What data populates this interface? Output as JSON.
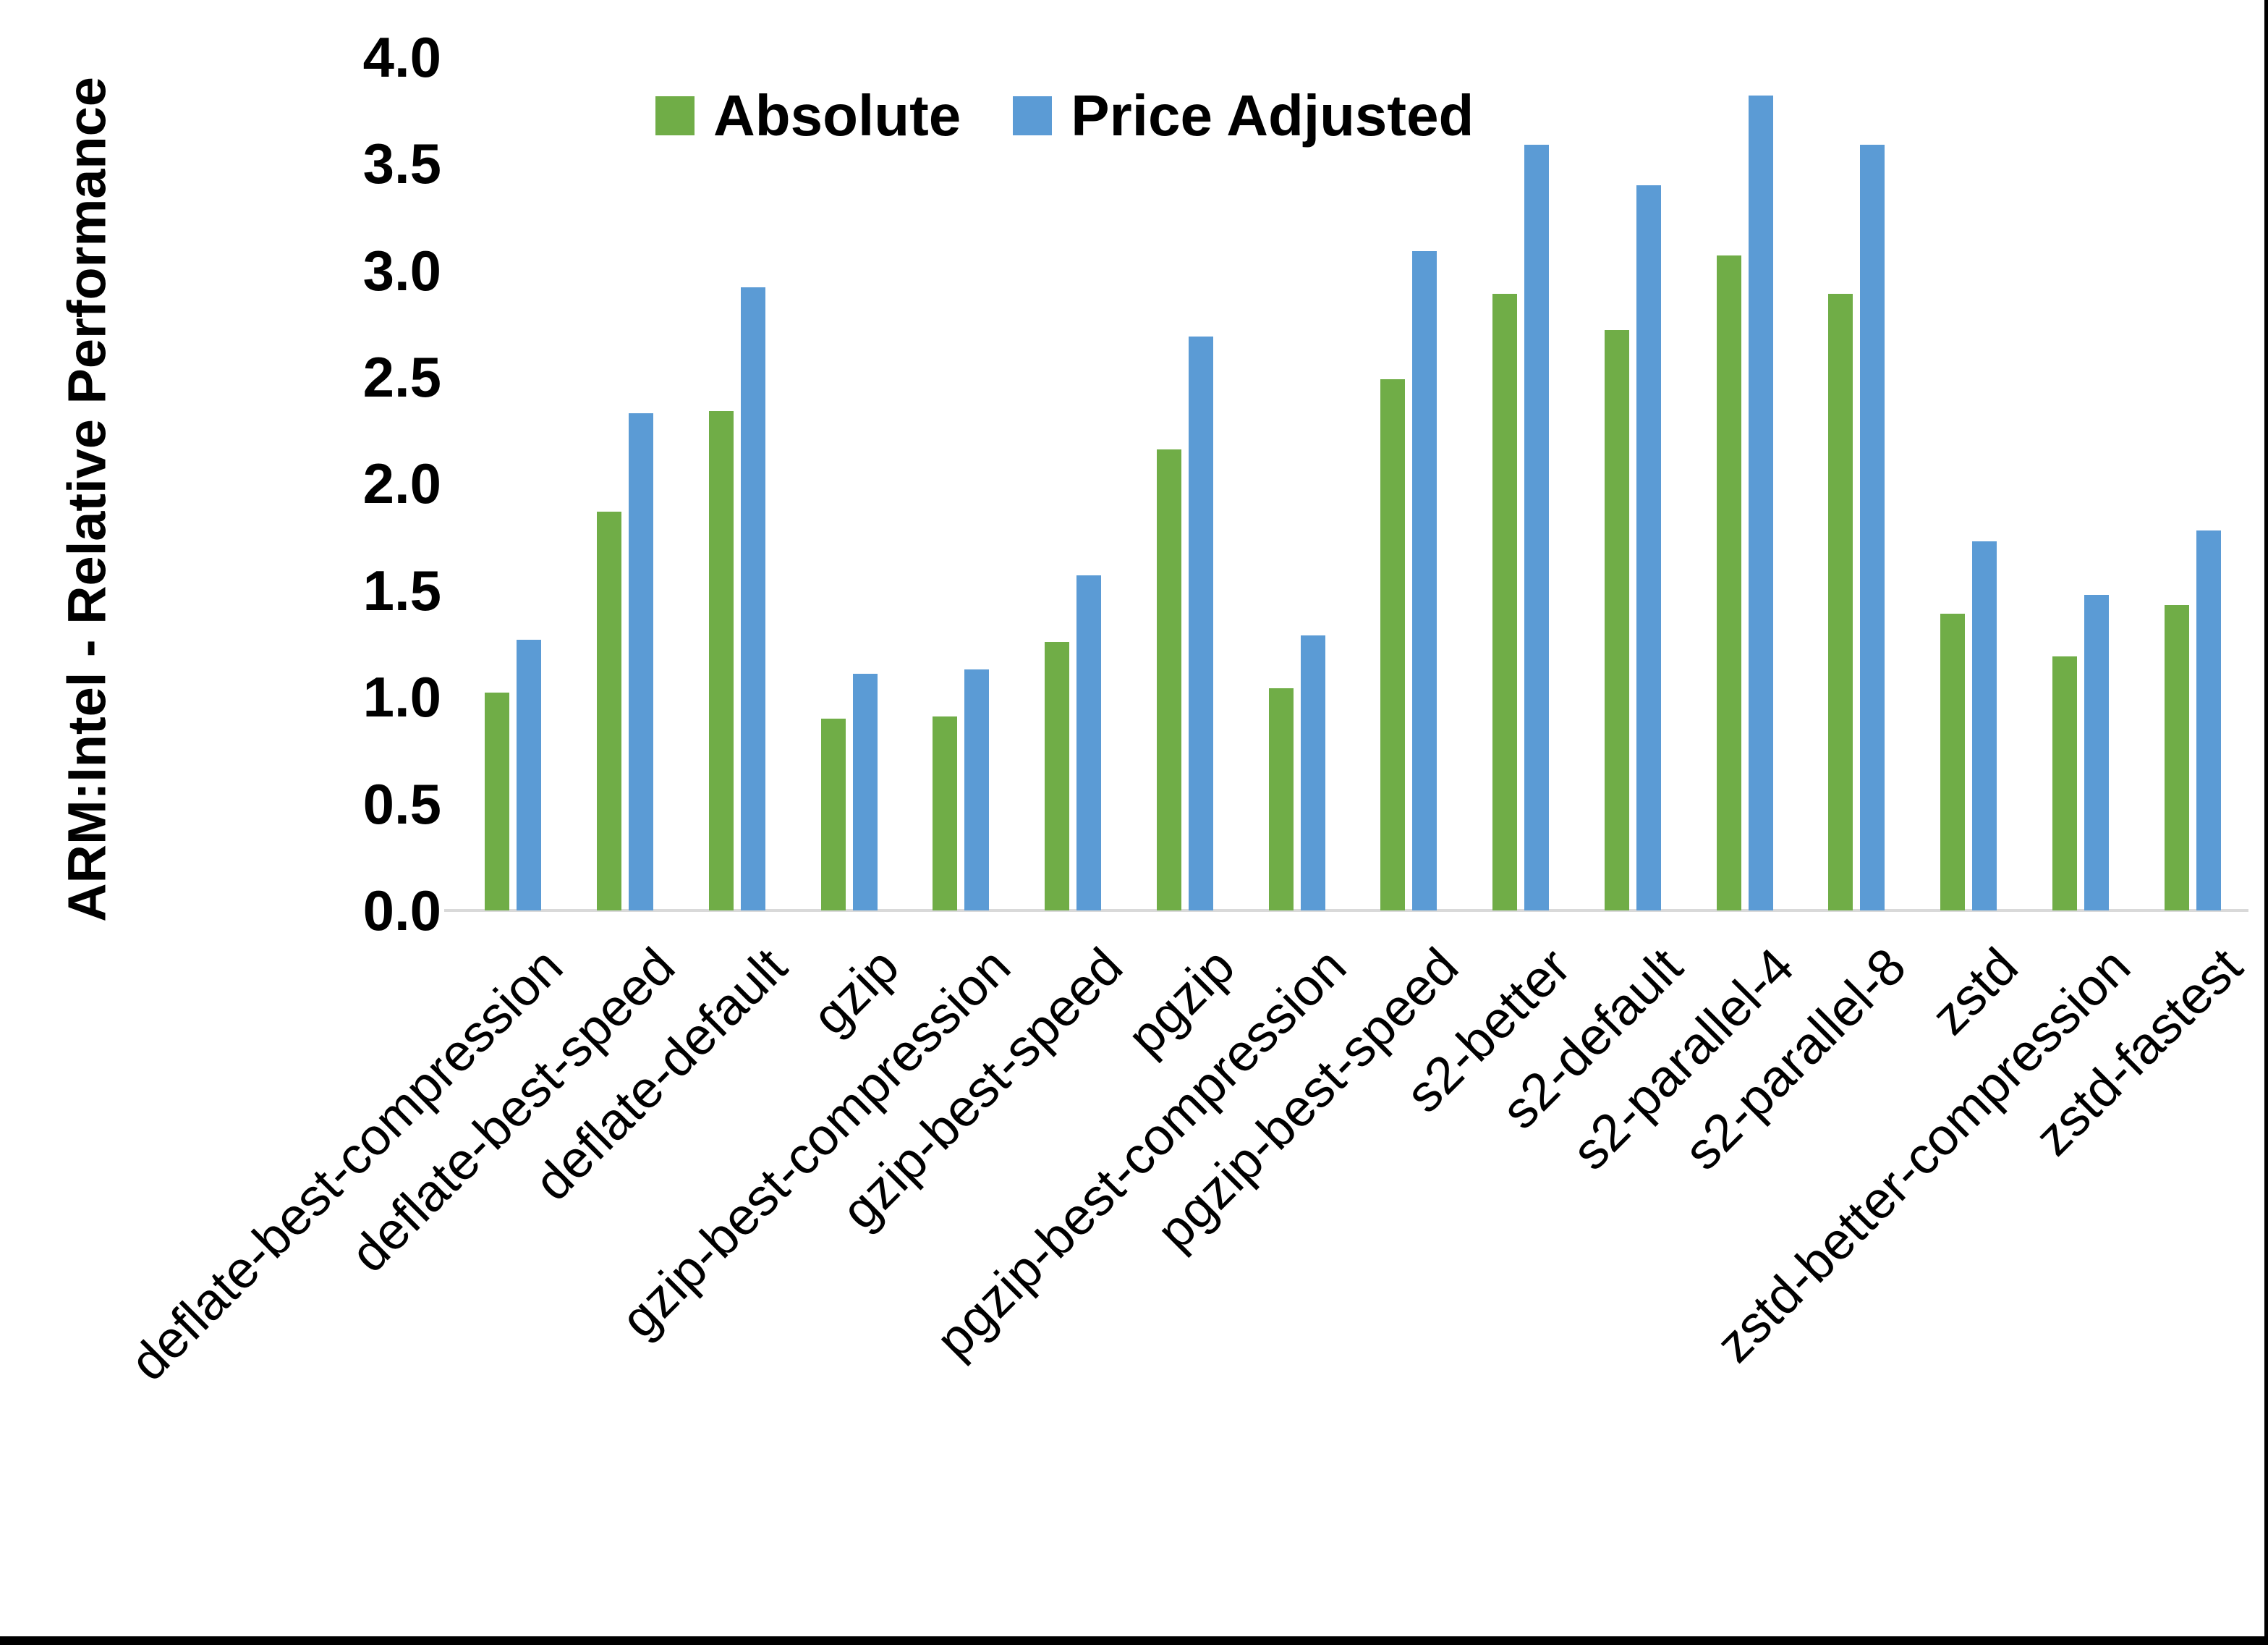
{
  "page": {
    "background": "#FFFFFF",
    "frame_border_color": "#000000"
  },
  "chart_data": {
    "type": "bar",
    "title": "",
    "xlabel": "",
    "ylabel": "ARM:Intel - Relative Performance",
    "ylim": [
      0.0,
      4.0
    ],
    "ytick_step": 0.5,
    "yticks": [
      0.0,
      0.5,
      1.0,
      1.5,
      2.0,
      2.5,
      3.0,
      3.5,
      4.0
    ],
    "ytick_labels": [
      "0.0",
      "0.5",
      "1.0",
      "1.5",
      "2.0",
      "2.5",
      "3.0",
      "3.5",
      "4.0"
    ],
    "grid": false,
    "legend_position": "top-center",
    "axis_line_color": "#D9D9D9",
    "text_color": "#000000",
    "categories": [
      "deflate-best-compression",
      "deflate-best-speed",
      "deflate-default",
      "gzip",
      "gzip-best-compression",
      "gzip-best-speed",
      "pgzip",
      "pgzip-best-compression",
      "pgzip-best-speed",
      "s2-better",
      "s2-default",
      "s2-parallel-4",
      "s2-parallel-8",
      "zstd",
      "zstd-better-compression",
      "zstd-fastest"
    ],
    "series": [
      {
        "name": "Absolute",
        "color": "#70AD47",
        "values": [
          1.02,
          1.87,
          2.34,
          0.9,
          0.91,
          1.26,
          2.16,
          1.04,
          2.49,
          2.89,
          2.72,
          3.07,
          2.89,
          1.39,
          1.19,
          1.43
        ]
      },
      {
        "name": "Price Adjusted",
        "color": "#5B9BD5",
        "values": [
          1.27,
          2.33,
          2.92,
          1.11,
          1.13,
          1.57,
          2.69,
          1.29,
          3.09,
          3.59,
          3.4,
          3.82,
          3.59,
          1.73,
          1.48,
          1.78
        ]
      }
    ]
  }
}
